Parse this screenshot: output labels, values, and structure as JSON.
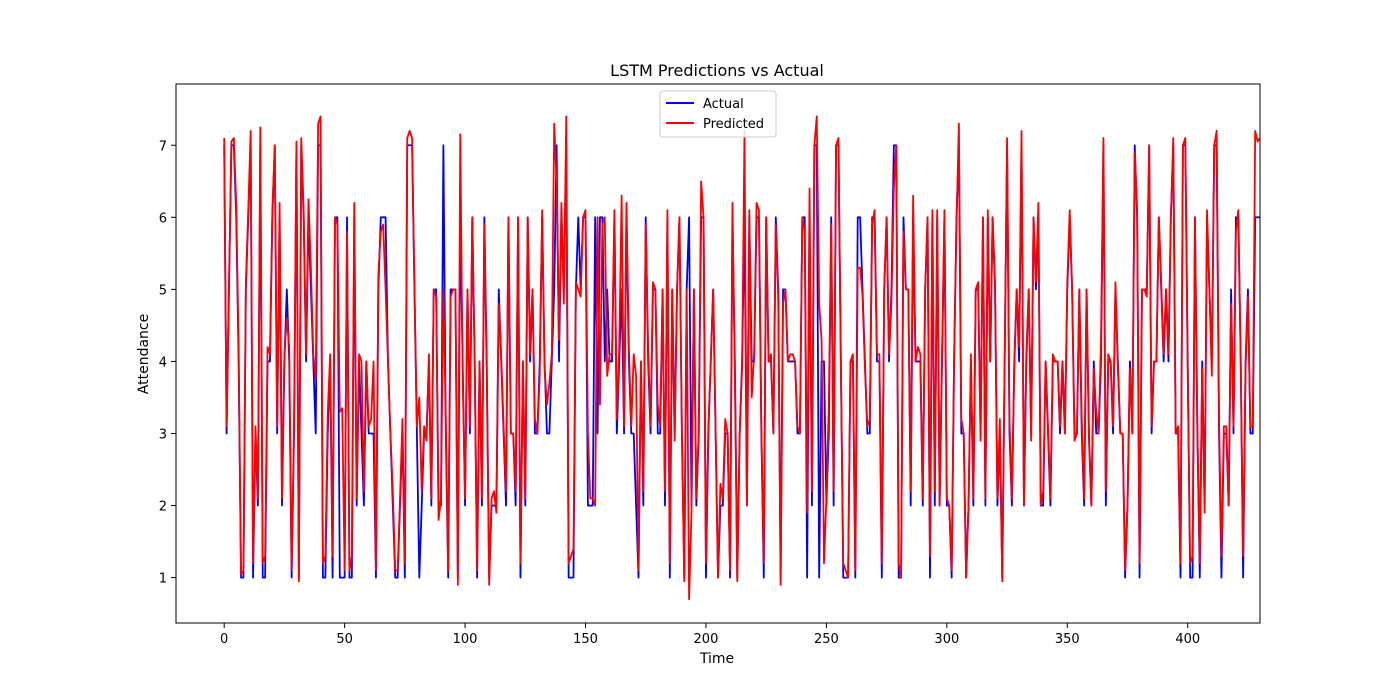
{
  "chart_data": {
    "type": "line",
    "title": "LSTM Predictions vs Actual",
    "xlabel": "Time",
    "ylabel": "Attendance",
    "xlim": [
      -20,
      430
    ],
    "ylim": [
      0.37,
      7.85
    ],
    "xticks": [
      0,
      50,
      100,
      150,
      200,
      250,
      300,
      350,
      400
    ],
    "yticks": [
      1,
      2,
      3,
      4,
      5,
      6,
      7
    ],
    "grid": false,
    "legend": "top-center",
    "series": [
      {
        "name": "Actual",
        "color": "#0000ff",
        "x_start": 0,
        "x_step": 1,
        "values": [
          7,
          3,
          5,
          7,
          7,
          6,
          4,
          1,
          1,
          5,
          6,
          7,
          1,
          3,
          2,
          7,
          1,
          1,
          4,
          4,
          6,
          7,
          3,
          6,
          2,
          4,
          5,
          4,
          1,
          3,
          7,
          1,
          7,
          6,
          4,
          6,
          5,
          4,
          3,
          7,
          7,
          1,
          1,
          3,
          4,
          1,
          6,
          6,
          1,
          1,
          1,
          6,
          1,
          1,
          6,
          2,
          4,
          3,
          2,
          4,
          3,
          3,
          3,
          1,
          5,
          6,
          6,
          6,
          4,
          3,
          2,
          1,
          1,
          2,
          3,
          1,
          7,
          7,
          7,
          5,
          3,
          1,
          2,
          3,
          3,
          4,
          2,
          5,
          5,
          2,
          2,
          7,
          3,
          1,
          5,
          5,
          5,
          1,
          6,
          4,
          2,
          5,
          3,
          6,
          4,
          1,
          4,
          2,
          6,
          4,
          1,
          2,
          2,
          2,
          5,
          4,
          3,
          2,
          6,
          3,
          3,
          2,
          6,
          1,
          4,
          2,
          6,
          4,
          5,
          3,
          3,
          4,
          6,
          4,
          3,
          3,
          4,
          5,
          7,
          4,
          6,
          5,
          7,
          1,
          1,
          1,
          5,
          6,
          5,
          6,
          6,
          2,
          2,
          2,
          6,
          3,
          6,
          6,
          4,
          5,
          4,
          4,
          6,
          3,
          4,
          5,
          3,
          6,
          4,
          3,
          3,
          2,
          1,
          4,
          2,
          6,
          4,
          3,
          5,
          5,
          3,
          3,
          5,
          2,
          6,
          1,
          5,
          3,
          5,
          6,
          3,
          1,
          5,
          6,
          2,
          5,
          2,
          3,
          6,
          6,
          1,
          3,
          4,
          5,
          3,
          1,
          2,
          2,
          3,
          3,
          1,
          6,
          4,
          1,
          3,
          4,
          6,
          2,
          6,
          4,
          4,
          6,
          6,
          3,
          1,
          6,
          4,
          4,
          3,
          6,
          5,
          1,
          5,
          5,
          4,
          4,
          4,
          4,
          3,
          3,
          6,
          6,
          1,
          6,
          2,
          7,
          7,
          1,
          4,
          4,
          2,
          3,
          6,
          2,
          7,
          7,
          4,
          1,
          1,
          1,
          4,
          4,
          1,
          6,
          6,
          5,
          4,
          3,
          3,
          6,
          6,
          4,
          4,
          1,
          5,
          6,
          4,
          5,
          7,
          7,
          1,
          1,
          6,
          5,
          5,
          2,
          6,
          4,
          4,
          4,
          2,
          5,
          6,
          1,
          6,
          2,
          6,
          2,
          4,
          6,
          2,
          2,
          1,
          4,
          6,
          7,
          3,
          3,
          1,
          2,
          4,
          2,
          5,
          5,
          3,
          6,
          2,
          6,
          4,
          6,
          5,
          2,
          3,
          1,
          4,
          7,
          3,
          2,
          4,
          5,
          4,
          7,
          2,
          4,
          5,
          3,
          6,
          5,
          6,
          2,
          2,
          4,
          3,
          2,
          4,
          4,
          4,
          3,
          4,
          3,
          5,
          6,
          5,
          3,
          3,
          5,
          3,
          2,
          5,
          3,
          2,
          4,
          3,
          3,
          4,
          7,
          2,
          4,
          4,
          3,
          5,
          4,
          3,
          3,
          1,
          2,
          4,
          3,
          7,
          6,
          1,
          5,
          5,
          5,
          7,
          3,
          4,
          4,
          6,
          5,
          4,
          5,
          4,
          6,
          7,
          3,
          3,
          1,
          7,
          7,
          4,
          1,
          1,
          6,
          3,
          1,
          4,
          2,
          6,
          5,
          4,
          7,
          7,
          3,
          1,
          3,
          3,
          2,
          5,
          3,
          6,
          6,
          4,
          1,
          4,
          5,
          3,
          3,
          6,
          6,
          6
        ]
      },
      {
        "name": "Predicted",
        "color": "#ff0000",
        "x_start": 0,
        "x_step": 1,
        "values": [
          7.1,
          3.1,
          5.1,
          7.05,
          7.1,
          6.2,
          4.2,
          1.05,
          1.1,
          5.1,
          6.1,
          7.2,
          1.2,
          3.1,
          2.1,
          7.25,
          1.2,
          1.3,
          4.2,
          4.1,
          6.1,
          7.0,
          3.1,
          6.2,
          2.1,
          4.1,
          4.6,
          4.2,
          1.1,
          3.1,
          7.05,
          0.95,
          7.1,
          6.1,
          4.1,
          6.25,
          5.3,
          4.1,
          3.75,
          7.3,
          7.4,
          1.2,
          1.3,
          3.3,
          4.1,
          1.3,
          6.0,
          5.9,
          3.3,
          3.35,
          1.1,
          5.8,
          1.1,
          1.3,
          6.2,
          2.1,
          4.1,
          4.0,
          2.2,
          4.0,
          3.1,
          3.2,
          4.0,
          1.1,
          5.2,
          5.8,
          5.9,
          5.0,
          4.0,
          3.0,
          2.2,
          1.1,
          1.1,
          2.1,
          3.2,
          1.2,
          7.1,
          7.2,
          7.1,
          5.0,
          3.1,
          3.5,
          2.2,
          3.1,
          2.9,
          4.1,
          2.1,
          5.0,
          4.9,
          1.8,
          2.1,
          5.0,
          3.2,
          1.1,
          4.9,
          5.0,
          5.0,
          0.9,
          7.15,
          3.8,
          2.1,
          5.0,
          3.1,
          6.0,
          4.0,
          1.1,
          4.0,
          2.1,
          5.9,
          3.8,
          0.9,
          2.1,
          2.2,
          1.9,
          4.8,
          4.1,
          3.1,
          2.2,
          6.0,
          3.0,
          3.0,
          2.2,
          6.0,
          1.2,
          4.0,
          2.1,
          6.0,
          4.1,
          5.0,
          3.2,
          3.0,
          3.8,
          6.1,
          3.9,
          3.4,
          3.7,
          4.1,
          7.3,
          6.5,
          4.3,
          6.2,
          4.8,
          7.4,
          1.2,
          1.3,
          1.4,
          5.1,
          5.0,
          4.9,
          6.0,
          6.1,
          3.0,
          2.1,
          2.1,
          2.0,
          6.0,
          3.4,
          5.9,
          6.0,
          3.8,
          4.1,
          4.1,
          6.1,
          3.2,
          4.2,
          6.3,
          3.1,
          6.2,
          4.2,
          3.1,
          4.1,
          3.8,
          1.1,
          4.0,
          2.2,
          5.9,
          4.2,
          3.1,
          5.1,
          5.0,
          3.4,
          3.1,
          5.0,
          2.2,
          6.1,
          1.2,
          5.0,
          2.9,
          5.0,
          6.0,
          3.1,
          0.95,
          5.0,
          0.7,
          1.9,
          5.0,
          2.1,
          3.0,
          6.5,
          6.0,
          1.2,
          3.1,
          4.0,
          5.0,
          3.1,
          1.0,
          2.3,
          2.1,
          3.2,
          3.0,
          1.1,
          6.2,
          3.8,
          0.95,
          3.0,
          3.9,
          7.2,
          2.0,
          6.1,
          3.5,
          4.1,
          6.2,
          6.1,
          3.1,
          1.2,
          6.0,
          4.0,
          4.1,
          3.0,
          5.9,
          4.9,
          0.9,
          4.8,
          5.0,
          4.0,
          4.1,
          4.1,
          4.0,
          3.1,
          3.0,
          6.0,
          5.8,
          1.9,
          6.4,
          2.2,
          7.0,
          7.4,
          4.8,
          4.3,
          1.2,
          2.1,
          3.4,
          5.9,
          2.2,
          7.0,
          7.1,
          4.0,
          1.2,
          1.1,
          1.0,
          4.0,
          4.1,
          1.1,
          5.3,
          5.3,
          4.9,
          3.9,
          3.1,
          3.2,
          5.9,
          6.1,
          4.1,
          4.1,
          1.2,
          5.0,
          6.0,
          4.1,
          4.8,
          6.4,
          7.0,
          1.2,
          1.0,
          5.8,
          5.0,
          5.0,
          2.2,
          6.3,
          4.0,
          4.2,
          4.1,
          2.1,
          5.0,
          6.0,
          1.3,
          6.1,
          2.2,
          6.1,
          2.0,
          4.1,
          6.1,
          2.1,
          2.0,
          1.1,
          4.0,
          5.9,
          7.3,
          3.2,
          3.0,
          1.0,
          2.0,
          4.1,
          2.1,
          5.0,
          5.1,
          2.9,
          6.0,
          2.1,
          6.1,
          4.0,
          6.0,
          5.1,
          2.1,
          3.2,
          0.95,
          4.0,
          7.1,
          3.2,
          2.1,
          3.9,
          5.0,
          4.2,
          7.2,
          2.0,
          4.1,
          5.0,
          2.9,
          6.0,
          5.1,
          6.2,
          2.0,
          2.2,
          4.0,
          3.1,
          2.1,
          4.1,
          4.0,
          4.0,
          3.1,
          4.0,
          3.0,
          5.1,
          6.1,
          5.0,
          2.9,
          3.0,
          5.0,
          3.2,
          2.1,
          5.0,
          2.9,
          2.0,
          3.9,
          3.3,
          3.0,
          4.3,
          7.1,
          2.2,
          4.1,
          4.0,
          3.1,
          5.1,
          3.9,
          3.0,
          3.0,
          1.1,
          2.0,
          3.9,
          3.0,
          6.9,
          6.1,
          1.2,
          5.0,
          5.0,
          4.9,
          7.0,
          3.1,
          4.0,
          4.0,
          6.0,
          5.1,
          4.1,
          5.0,
          4.1,
          6.0,
          7.1,
          3.0,
          3.1,
          1.2,
          7.0,
          7.1,
          3.8,
          1.2,
          1.3,
          6.0,
          3.1,
          1.2,
          3.9,
          1.9,
          6.1,
          5.0,
          3.8,
          7.0,
          7.2,
          3.2,
          1.3,
          3.1,
          3.1,
          2.0,
          4.8,
          3.1,
          5.8,
          6.1,
          4.0,
          1.3,
          3.9,
          4.9,
          3.1,
          3.1,
          7.2,
          7.05,
          7.1
        ]
      }
    ]
  }
}
